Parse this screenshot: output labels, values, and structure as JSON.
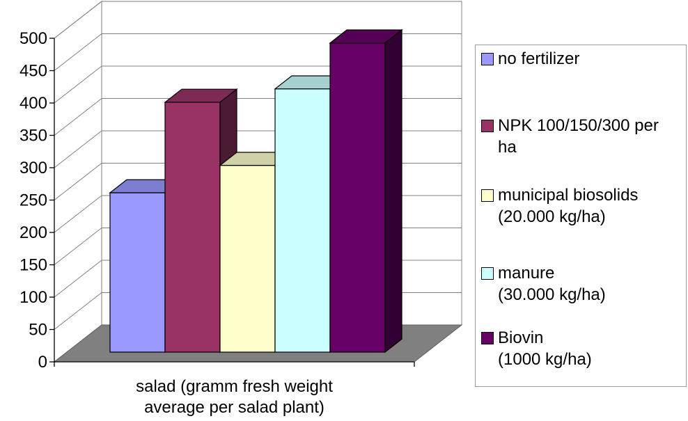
{
  "chart_data": {
    "type": "bar",
    "title": "",
    "categories": [
      "salad (gramm fresh weight\naverage per salad plant)"
    ],
    "series": [
      {
        "name": "no fertilizer",
        "values": [
          250
        ],
        "color": "#9999ff"
      },
      {
        "name": "NPK 100/150/300 per\nha",
        "values": [
          392
        ],
        "color": "#993366"
      },
      {
        "name": "municipal biosolids\n(20.000 kg/ha)",
        "values": [
          293
        ],
        "color": "#ffffcc"
      },
      {
        "name": "manure\n(30.000 kg/ha)",
        "values": [
          413
        ],
        "color": "#ccffff"
      },
      {
        "name": "Biovin\n(1000 kg/ha)",
        "values": [
          485
        ],
        "color": "#660066"
      }
    ],
    "ylim": [
      0,
      500
    ],
    "yticks": [
      "0",
      "50",
      "100",
      "150",
      "200",
      "250",
      "300",
      "350",
      "400",
      "450",
      "500"
    ],
    "xlabel": "",
    "ylabel": "",
    "grid": true,
    "legend": "right"
  }
}
